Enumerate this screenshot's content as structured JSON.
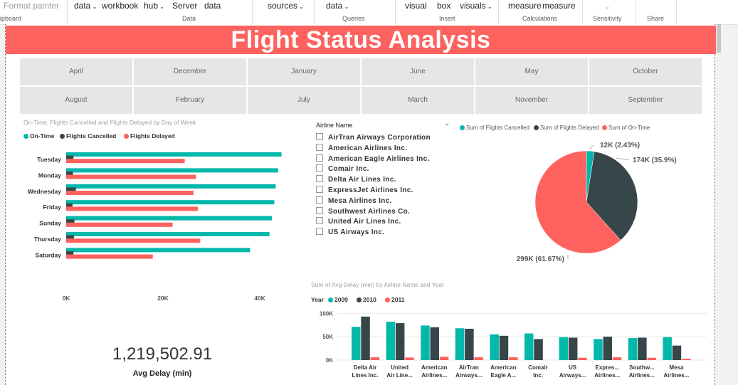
{
  "ribbon": {
    "items": [
      {
        "label": "Format painter",
        "x": 5,
        "dim": true,
        "chev": false
      },
      {
        "label": "data",
        "x": 104,
        "dim": false,
        "chev": true
      },
      {
        "label": "workbook",
        "x": 143,
        "dim": false,
        "chev": false
      },
      {
        "label": "hub",
        "x": 202,
        "dim": false,
        "chev": true
      },
      {
        "label": "Server",
        "x": 242,
        "dim": false,
        "chev": false
      },
      {
        "label": "data",
        "x": 287,
        "dim": false,
        "chev": false
      },
      {
        "label": "sources",
        "x": 376,
        "dim": false,
        "chev": true
      },
      {
        "label": "data",
        "x": 458,
        "dim": false,
        "chev": true
      },
      {
        "label": "visual",
        "x": 569,
        "dim": false,
        "chev": false
      },
      {
        "label": "box",
        "x": 614,
        "dim": false,
        "chev": false
      },
      {
        "label": "visuals",
        "x": 646,
        "dim": false,
        "chev": true
      },
      {
        "label": "measure",
        "x": 714,
        "dim": false,
        "chev": false
      },
      {
        "label": "measure",
        "x": 762,
        "dim": false,
        "chev": false
      },
      {
        "label": "",
        "x": 850,
        "dim": true,
        "chev": true
      }
    ],
    "groups": [
      {
        "label": "ipboard",
        "x": 0
      },
      {
        "label": "Data",
        "x": 256
      },
      {
        "label": "Queries",
        "x": 481
      },
      {
        "label": "Insert",
        "x": 617
      },
      {
        "label": "Calculations",
        "x": 734
      },
      {
        "label": "Sensitivity",
        "x": 833
      },
      {
        "label": "Share",
        "x": 909
      }
    ]
  },
  "report_title": "Flight Status Analysis",
  "month_tiles": [
    "April",
    "December",
    "January",
    "June",
    "May",
    "October",
    "August",
    "February",
    "July",
    "March",
    "November",
    "September"
  ],
  "day_chart": {
    "title": "On-Time, Flights Cancelled and Flights Delayed by Day of Week",
    "legend": [
      {
        "name": "On-Time",
        "color": "#01b8aa"
      },
      {
        "name": "Flights Cancelled",
        "color": "#374649"
      },
      {
        "name": "Flights Delayed",
        "color": "#fd625e"
      }
    ],
    "ticks": [
      "0K",
      "20K",
      "40K"
    ]
  },
  "slicer": {
    "header": "Airline Name",
    "items": [
      "AirTran Airways Corporation",
      "American Airlines Inc.",
      "American Eagle Airlines Inc.",
      "Comair Inc.",
      "Delta Air Lines Inc.",
      "ExpressJet Airlines Inc.",
      "Mesa Airlines Inc.",
      "Southwest Airlines Co.",
      "United Air Lines Inc.",
      "US Airways Inc."
    ]
  },
  "pie_legend": [
    {
      "name": "Sum of Flights Cancelled",
      "color": "#01b8aa"
    },
    {
      "name": "Sum of Flights Delayed",
      "color": "#374649"
    },
    {
      "name": "Sum of On-Time",
      "color": "#fd625e"
    }
  ],
  "kpi": {
    "value": "1,219,502.91",
    "label": "Avg Delay (min)"
  },
  "airline_chart": {
    "title": "Sum of Avg Delay (min) by Airline Name and Year",
    "legend_title": "Year",
    "legend": [
      {
        "name": "2009",
        "color": "#01b8aa"
      },
      {
        "name": "2010",
        "color": "#374649"
      },
      {
        "name": "2011",
        "color": "#fd625e"
      }
    ],
    "ticks": [
      "100K",
      "50K",
      "0K"
    ]
  },
  "chart_data": [
    {
      "type": "bar",
      "orientation": "horizontal",
      "title": "On-Time, Flights Cancelled and Flights Delayed by Day of Week",
      "categories": [
        "Tuesday",
        "Monday",
        "Wednesday",
        "Friday",
        "Sunday",
        "Thursday",
        "Saturday"
      ],
      "series": [
        {
          "name": "On-Time",
          "values": [
            44500,
            43800,
            43300,
            43000,
            42500,
            42000,
            38000
          ]
        },
        {
          "name": "Flights Cancelled",
          "values": [
            1500,
            1400,
            2000,
            1300,
            1700,
            1600,
            1500
          ]
        },
        {
          "name": "Flights Delayed",
          "values": [
            24500,
            26800,
            26300,
            27200,
            22000,
            27700,
            17900
          ]
        }
      ],
      "xlim": [
        0,
        50000
      ],
      "tick_values": [
        0,
        20000,
        40000
      ]
    },
    {
      "type": "pie",
      "slices": [
        {
          "name": "Sum of Flights Cancelled",
          "value": 12000,
          "label": "12K (2.43%)"
        },
        {
          "name": "Sum of Flights Delayed",
          "value": 174000,
          "label": "174K (35.9%)"
        },
        {
          "name": "Sum of On-Time",
          "value": 299000,
          "label": "299K (61.67%)"
        }
      ]
    },
    {
      "type": "bar",
      "title": "Sum of Avg Delay (min) by Airline Name and Year",
      "categories": [
        "Delta Air Lines Inc.",
        "United Air Line...",
        "American Airlines...",
        "AirTran Airways...",
        "American Eagle A...",
        "Comair Inc.",
        "US Airways...",
        "Expres...",
        "Southw...",
        "Mesa Airlines..."
      ],
      "category_labels": [
        [
          "Delta Air",
          "Lines Inc."
        ],
        [
          "United",
          "Air Line..."
        ],
        [
          "American",
          "Airlines..."
        ],
        [
          "AirTran",
          "Airways..."
        ],
        [
          "American",
          "Eagle A..."
        ],
        [
          "Comair",
          "Inc."
        ],
        [
          "US",
          "Airways..."
        ],
        [
          "Expres...",
          "Airlines..."
        ],
        [
          "Southw...",
          "Airlines..."
        ],
        [
          "Mesa",
          "Airlines..."
        ]
      ],
      "series": [
        {
          "name": "2009",
          "values": [
            71000,
            82000,
            74000,
            68000,
            55000,
            57000,
            49000,
            45000,
            47000,
            49000
          ]
        },
        {
          "name": "2010",
          "values": [
            93000,
            79000,
            70000,
            67000,
            52000,
            45000,
            48000,
            50000,
            48000,
            31000
          ]
        },
        {
          "name": "2011",
          "values": [
            6000,
            5500,
            7000,
            6000,
            6000,
            0,
            5000,
            6000,
            5000,
            3000
          ]
        }
      ],
      "ylim": [
        0,
        105000
      ],
      "tick_values": [
        100000,
        50000,
        0
      ]
    }
  ]
}
